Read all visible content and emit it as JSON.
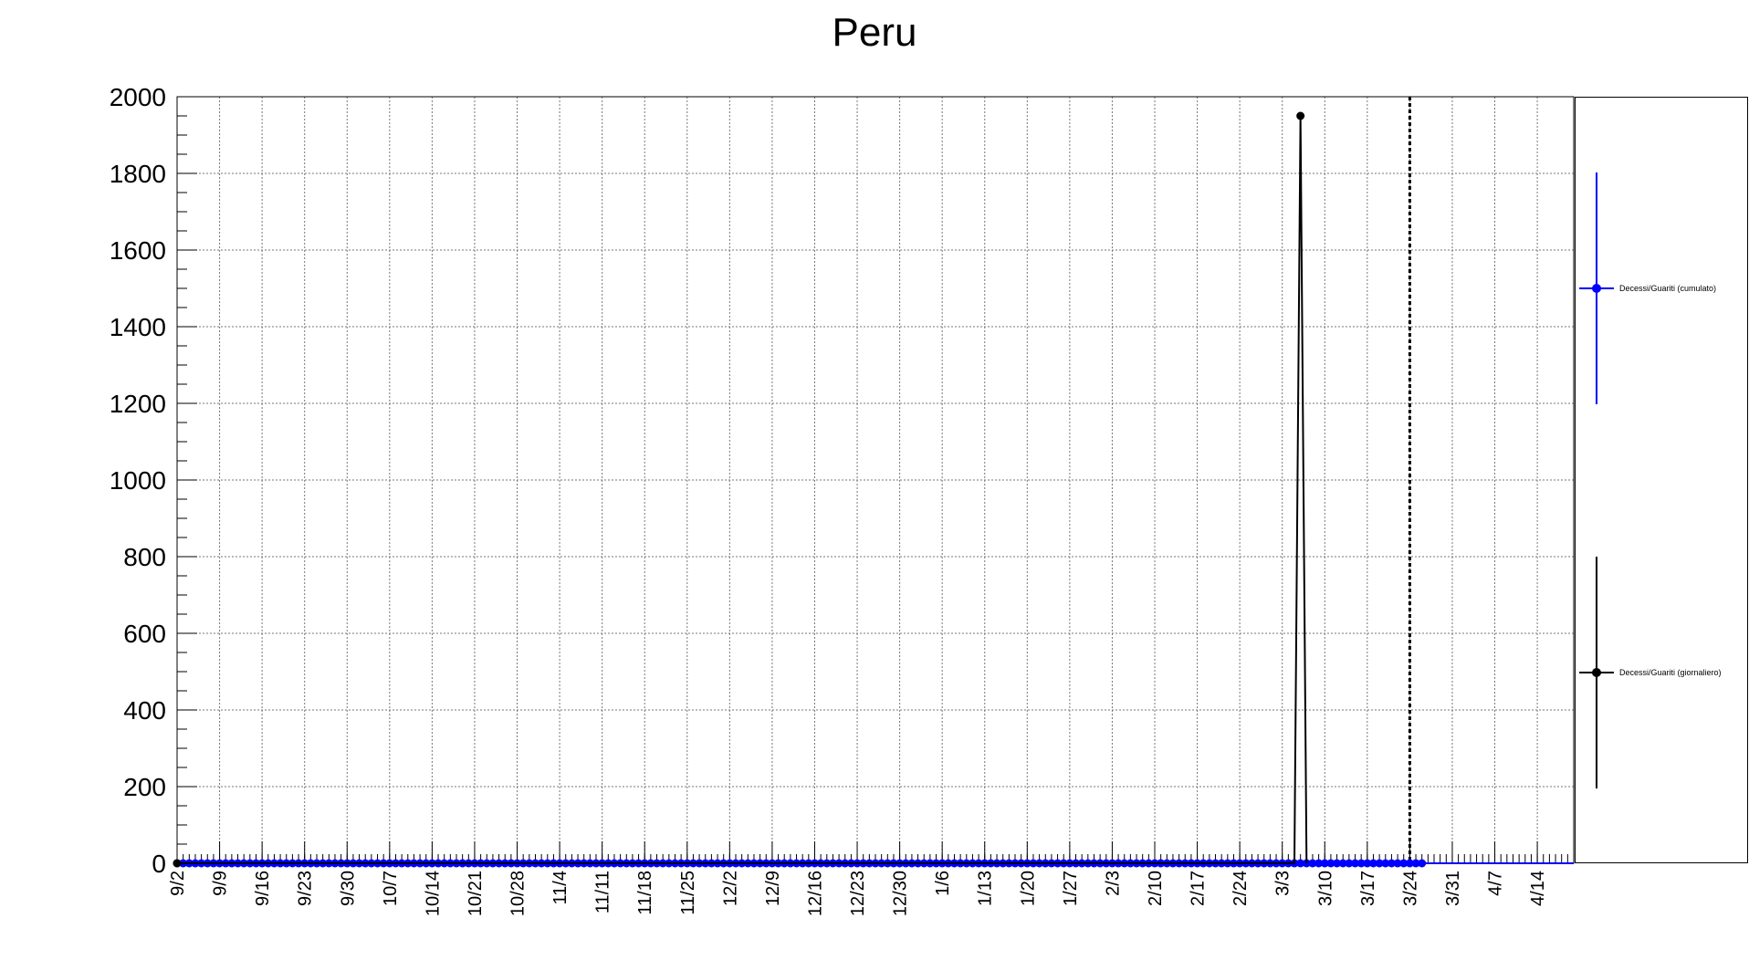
{
  "chart_data": {
    "type": "line",
    "title": "Peru",
    "xlabel": "",
    "ylabel": "",
    "ylim": [
      0,
      2000
    ],
    "yticks": [
      0,
      200,
      400,
      600,
      800,
      1000,
      1200,
      1400,
      1600,
      1800,
      2000
    ],
    "xtick_labels": [
      "9/2",
      "9/9",
      "9/16",
      "9/23",
      "9/30",
      "10/7",
      "10/14",
      "10/21",
      "10/28",
      "11/4",
      "11/11",
      "11/18",
      "11/25",
      "12/2",
      "12/9",
      "12/16",
      "12/23",
      "12/30",
      "1/6",
      "1/13",
      "1/20",
      "1/27",
      "2/3",
      "2/10",
      "2/17",
      "2/24",
      "3/3",
      "3/10",
      "3/17",
      "3/24",
      "3/31",
      "4/7",
      "4/14"
    ],
    "x_start": "9/2",
    "x_end_day": 230,
    "last_data_day": 205,
    "reference_line": "3/24",
    "grid": true,
    "legend_position": "right",
    "series": [
      {
        "name": "Decessi/Guariti (cumulato)",
        "color": "#0000ff",
        "marker": "circle",
        "values": [
          0
        ],
        "note_constant": true
      },
      {
        "name": "Decessi/Guariti (giornaliero)",
        "color": "#000000",
        "marker": "circle",
        "points": [
          {
            "x": "9/2",
            "y": 0
          },
          {
            "x": "3/5",
            "y": 0
          },
          {
            "x": "3/6",
            "y": 1950
          },
          {
            "x": "3/7",
            "y": 0
          }
        ]
      }
    ]
  }
}
